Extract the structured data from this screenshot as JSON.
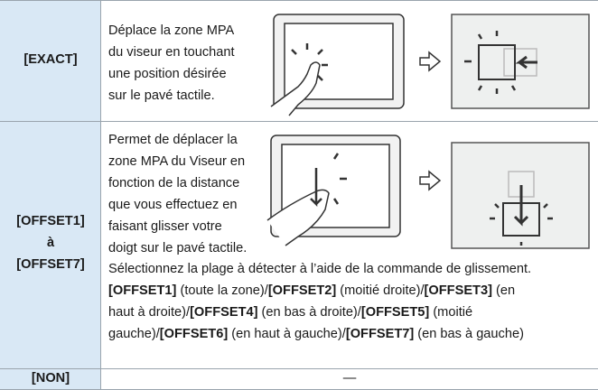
{
  "table": {
    "rows": [
      {
        "label": [
          "[EXACT]"
        ],
        "description": [
          "Déplace la zone MPA",
          "du viseur en touchant",
          "une position désirée",
          "sur le pavé tactile."
        ]
      },
      {
        "label": [
          "[OFFSET1]",
          "à",
          "[OFFSET7]"
        ],
        "description": [
          "Permet de déplacer la",
          "zone MPA du Viseur en",
          "fonction de la distance",
          "que vous effectuez en",
          "faisant glisser votre",
          "doigt sur le pavé tactile."
        ],
        "note": [
          [
            {
              "text": "Sélectionnez la plage à détecter à l’aide de la commande de glissement.",
              "bold": false
            }
          ],
          [
            {
              "text": "[OFFSET1]",
              "bold": true
            },
            {
              "text": " (toute la zone)/",
              "bold": false
            },
            {
              "text": "[OFFSET2]",
              "bold": true
            },
            {
              "text": " (moitié droite)/",
              "bold": false
            },
            {
              "text": "[OFFSET3]",
              "bold": true
            },
            {
              "text": " (en",
              "bold": false
            }
          ],
          [
            {
              "text": "haut à droite)/",
              "bold": false
            },
            {
              "text": "[OFFSET4]",
              "bold": true
            },
            {
              "text": " (en bas à droite)/",
              "bold": false
            },
            {
              "text": "[OFFSET5]",
              "bold": true
            },
            {
              "text": " (moitié",
              "bold": false
            }
          ],
          [
            {
              "text": "gauche)/",
              "bold": false
            },
            {
              "text": "[OFFSET6]",
              "bold": true
            },
            {
              "text": " (en haut à gauche)/",
              "bold": false
            },
            {
              "text": "[OFFSET7]",
              "bold": true
            },
            {
              "text": " (en bas à gauche)",
              "bold": false
            }
          ]
        ]
      },
      {
        "label": [
          "[NON]"
        ],
        "description": [
          "—"
        ]
      }
    ]
  }
}
